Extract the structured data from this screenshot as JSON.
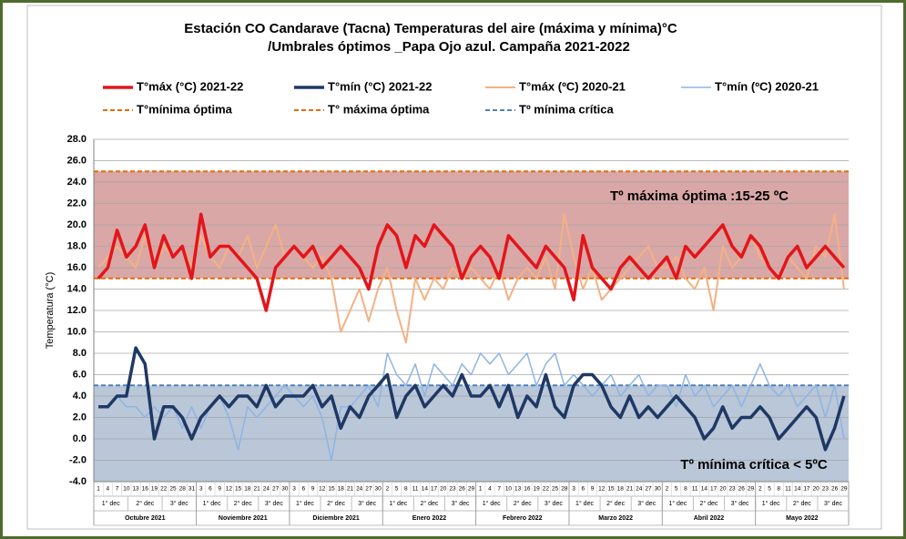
{
  "chart_data": {
    "type": "line",
    "title": [
      "Estación CO Candarave (Tacna) Temperaturas  del aire  (máxima y mínima)°C",
      "/Umbrales óptimos  _Papa Ojo azul. Campaña 2021-2022"
    ],
    "y_label": "Temperatura (°C)",
    "months": [
      {
        "name": "Octubre 2021",
        "days": [
          1,
          4,
          7,
          10,
          13,
          16,
          19,
          22,
          25,
          28,
          31
        ]
      },
      {
        "name": "Noviembre 2021",
        "days": [
          3,
          6,
          9,
          12,
          15,
          18,
          21,
          24,
          27,
          30
        ]
      },
      {
        "name": "Diciembre 2021",
        "days": [
          3,
          6,
          9,
          12,
          15,
          18,
          21,
          24,
          27,
          30
        ]
      },
      {
        "name": "Enero 2022",
        "days": [
          2,
          5,
          8,
          11,
          14,
          17,
          20,
          23,
          26,
          29
        ]
      },
      {
        "name": "Febrero 2022",
        "days": [
          1,
          4,
          7,
          10,
          13,
          16,
          19,
          22,
          25,
          28
        ]
      },
      {
        "name": "Marzo 2022",
        "days": [
          3,
          6,
          9,
          12,
          15,
          18,
          21,
          24,
          27,
          30
        ]
      },
      {
        "name": "Abril 2022",
        "days": [
          2,
          5,
          8,
          11,
          14,
          17,
          20,
          23,
          26,
          29
        ]
      },
      {
        "name": "Mayo 2022",
        "days": [
          2,
          5,
          8,
          11,
          14,
          17,
          20,
          23,
          26,
          29
        ]
      }
    ],
    "decades": [
      "1° dec",
      "2° dec",
      "3° dec"
    ],
    "series": [
      {
        "name": "T°máx (°C) 2021-22",
        "color": "#e3151b",
        "width": 3.5,
        "values": [
          15,
          16,
          19.5,
          17,
          18,
          20,
          16,
          19,
          17,
          18,
          15,
          21,
          17,
          18,
          18,
          17,
          16,
          15,
          12,
          16,
          17,
          18,
          17,
          18,
          16,
          17,
          18,
          17,
          16,
          14,
          18,
          20,
          19,
          16,
          19,
          18,
          20,
          19,
          18,
          15,
          17,
          18,
          17,
          15,
          19,
          18,
          17,
          16,
          18,
          17,
          16,
          13,
          19,
          16,
          15,
          14,
          16,
          17,
          16,
          15,
          16,
          17,
          15,
          18,
          17,
          18,
          19,
          20,
          18,
          17,
          19,
          18,
          16,
          15,
          17,
          18,
          16,
          17,
          18,
          17,
          16
        ]
      },
      {
        "name": "T°mín (°C) 2021-22",
        "color": "#1f3864",
        "width": 3.5,
        "values": [
          3,
          3,
          4,
          4,
          8.5,
          7,
          0,
          3,
          3,
          2,
          0,
          2,
          3,
          4,
          3,
          4,
          4,
          3,
          5,
          3,
          4,
          4,
          4,
          5,
          3,
          4,
          1,
          3,
          2,
          4,
          5,
          6,
          2,
          4,
          5,
          3,
          4,
          5,
          4,
          6,
          4,
          4,
          5,
          3,
          5,
          2,
          4,
          3,
          6,
          3,
          2,
          5,
          6,
          6,
          5,
          3,
          2,
          4,
          2,
          3,
          2,
          3,
          4,
          3,
          2,
          0,
          1,
          3,
          1,
          2,
          2,
          3,
          2,
          0,
          1,
          2,
          3,
          2,
          -1,
          1,
          4
        ]
      },
      {
        "name": "T°máx (ºC) 2020-21",
        "color": "#f4b183",
        "width": 2,
        "values": [
          16,
          17,
          18,
          17,
          16,
          19,
          16,
          18,
          17,
          18,
          16,
          19,
          17,
          16,
          18,
          17,
          19,
          16,
          18,
          20,
          17,
          18,
          17,
          16,
          17,
          15,
          10,
          12,
          14,
          11,
          14,
          16,
          12,
          9,
          15,
          13,
          15,
          14,
          16,
          15,
          16,
          15,
          14,
          16,
          13,
          15,
          16,
          15,
          17,
          14,
          21,
          17,
          14,
          16,
          13,
          14,
          15,
          16,
          17,
          18,
          16,
          16,
          17,
          15,
          14,
          16,
          12,
          18,
          16,
          17,
          19,
          17,
          16,
          15,
          17,
          16,
          15,
          18,
          17,
          21,
          14
        ]
      },
      {
        "name": "T°mín (ºC) 2020-21",
        "color": "#8eb4e3",
        "width": 1.5,
        "values": [
          3,
          3,
          4,
          3,
          3,
          2,
          3,
          2,
          3,
          1,
          3,
          1,
          3,
          4,
          2,
          -1,
          3,
          2,
          3,
          4,
          5,
          4,
          3,
          4,
          2,
          -2,
          3,
          3,
          4,
          5,
          3,
          8,
          6,
          5,
          7,
          4,
          7,
          6,
          5,
          7,
          6,
          8,
          7,
          8,
          6,
          7,
          8,
          5,
          7,
          8,
          5,
          6,
          5,
          4,
          5,
          6,
          4,
          5,
          6,
          4,
          5,
          5,
          3,
          6,
          4,
          5,
          3,
          4,
          5,
          3,
          5,
          7,
          5,
          4,
          5,
          3,
          4,
          5,
          2,
          5,
          0
        ]
      }
    ],
    "thresholds": [
      {
        "name": "T°mínima óptima",
        "value": 15,
        "color": "#e46c0a"
      },
      {
        "name": "T° máxima óptima",
        "value": 25,
        "color": "#e46c0a"
      },
      {
        "name": "Tº mínima crítica",
        "value": 5,
        "color": "#4f81bd"
      }
    ],
    "bands": [
      {
        "from": 15,
        "to": 25,
        "color": "#d9a7a6",
        "label": "Tº máxima óptima :15-25 ºC"
      },
      {
        "from": -4,
        "to": 5,
        "color": "#b9c7d9",
        "label": "Tº mínima crítica < 5ºC"
      }
    ],
    "ylim": [
      -4,
      28
    ],
    "yticks": [
      {
        "value": -4,
        "label": "-4.0"
      },
      {
        "value": -2,
        "label": "-2.0"
      },
      {
        "value": 0,
        "label": "0.0"
      },
      {
        "value": 2,
        "label": "2.0"
      },
      {
        "value": 4,
        "label": "4.0"
      },
      {
        "value": 6,
        "label": "6.0"
      },
      {
        "value": 8,
        "label": "8.0"
      },
      {
        "value": 10,
        "label": "10.0"
      },
      {
        "value": 12,
        "label": "12.0"
      },
      {
        "value": 14,
        "label": "14.0"
      },
      {
        "value": 16,
        "label": "16.0"
      },
      {
        "value": 18,
        "label": "18.0"
      },
      {
        "value": 20,
        "label": "20.0"
      },
      {
        "value": 22,
        "label": "22.0"
      },
      {
        "value": 24,
        "label": "24.0"
      },
      {
        "value": 26,
        "label": "26.0"
      },
      {
        "value": 28,
        "label": "28.0"
      }
    ],
    "grid": true
  }
}
